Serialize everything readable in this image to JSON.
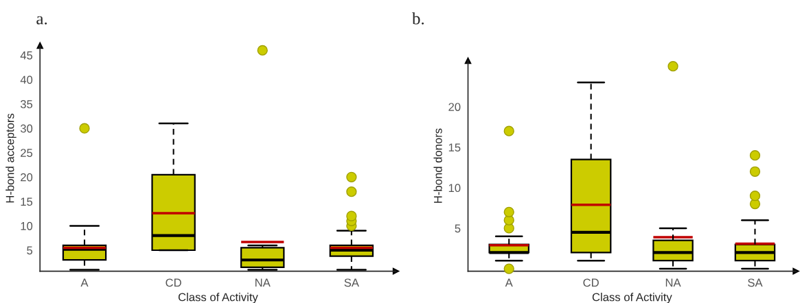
{
  "chart_data": [
    {
      "type": "box",
      "title": "a.",
      "xlabel": "Class of Activity",
      "ylabel": "H-bond acceptors",
      "categories": [
        "A",
        "CD",
        "NA",
        "SA"
      ],
      "color": "#cccc00",
      "ylim": [
        0.7,
        47
      ],
      "yticks": [
        5,
        10,
        15,
        20,
        25,
        30,
        35,
        40,
        45
      ],
      "grid": false,
      "boxes": [
        {
          "low": 1,
          "q1": 3,
          "median": 5.2,
          "q3": 6,
          "high": 10,
          "mean": 5.5,
          "outliers": [
            30
          ]
        },
        {
          "low": 5,
          "q1": 5,
          "median": 8,
          "q3": 20.5,
          "high": 31,
          "mean": 12.6
        },
        {
          "low": 1,
          "q1": 1.5,
          "median": 3,
          "q3": 5.5,
          "high": 6,
          "mean": 6.7,
          "outliers": [
            46
          ]
        },
        {
          "low": 1,
          "q1": 3.8,
          "median": 5,
          "q3": 6,
          "high": 9,
          "mean": 5.5,
          "outliers": [
            10,
            11,
            12,
            17,
            20
          ]
        }
      ]
    },
    {
      "type": "box",
      "title": "b.",
      "xlabel": "Class of Activity",
      "ylabel": "H-bond donors",
      "categories": [
        "A",
        "CD",
        "NA",
        "SA"
      ],
      "color": "#cccc00",
      "ylim": [
        -0.3,
        25.7
      ],
      "yticks": [
        5,
        10,
        15,
        20
      ],
      "grid": false,
      "boxes": [
        {
          "low": 1,
          "q1": 2,
          "median": 2,
          "q3": 3,
          "high": 4,
          "mean": 2.9,
          "outliers": [
            0,
            5,
            6,
            7,
            17
          ]
        },
        {
          "low": 1,
          "q1": 2,
          "median": 4.5,
          "q3": 13.5,
          "high": 23,
          "mean": 7.9
        },
        {
          "low": 0,
          "q1": 1,
          "median": 2,
          "q3": 3.5,
          "high": 5,
          "mean": 3.9,
          "outliers": [
            25
          ]
        },
        {
          "low": 0,
          "q1": 1,
          "median": 2,
          "q3": 3,
          "high": 6,
          "mean": 3.1,
          "outliers": [
            8,
            9,
            12,
            14
          ]
        }
      ]
    }
  ]
}
